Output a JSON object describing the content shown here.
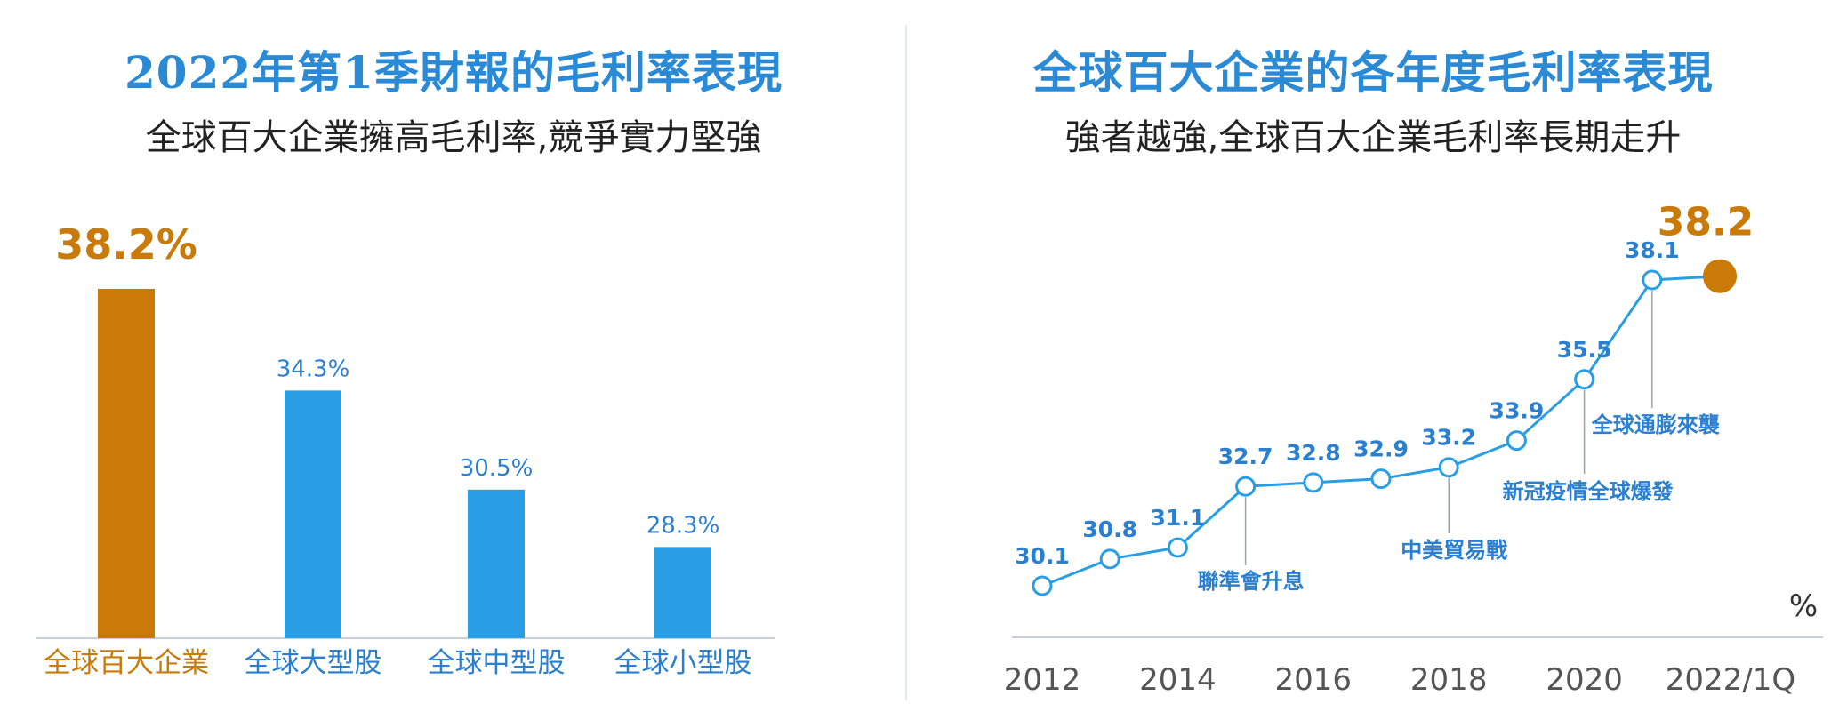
{
  "chart_data": [
    {
      "type": "bar",
      "title": "2022年第1季財報的毛利率表現",
      "subtitle": "全球百大企業擁高毛利率,競爭實力堅強",
      "categories": [
        "全球百大企業",
        "全球大型股",
        "全球中型股",
        "全球小型股"
      ],
      "values": [
        38.2,
        34.3,
        30.5,
        28.3
      ],
      "value_labels": [
        "38.2%",
        "34.3%",
        "30.5%",
        "28.3%"
      ],
      "ylim": [
        24.8,
        38.2
      ],
      "grid": false,
      "colors": [
        "#c97a07",
        "#2a9ee4",
        "#2a9ee4",
        "#2a9ee4"
      ]
    },
    {
      "type": "line",
      "title": "全球百大企業的各年度毛利率表現",
      "subtitle": "強者越強,全球百大企業毛利率長期走升",
      "unit_label": "%",
      "x": [
        "2012",
        "2013",
        "2014",
        "2015",
        "2016",
        "2017",
        "2018",
        "2019",
        "2020",
        "2021",
        "2022/1Q"
      ],
      "x_tick_labels": [
        "2012",
        "2014",
        "2016",
        "2018",
        "2020",
        "2022/1Q"
      ],
      "x_tick_indices": [
        0,
        2,
        4,
        6,
        8,
        10
      ],
      "values": [
        30.1,
        30.8,
        31.1,
        32.7,
        32.8,
        32.9,
        33.2,
        33.9,
        35.5,
        38.1,
        38.2
      ],
      "point_labels": [
        "30.1",
        "30.8",
        "31.1",
        "32.7",
        "32.8",
        "32.9",
        "33.2",
        "33.9",
        "35.5",
        "38.1",
        "38.2"
      ],
      "highlight_index": 10,
      "ylim": [
        28.0,
        40.5
      ],
      "grid": false,
      "annotations": [
        {
          "index": 3,
          "text": "聯準會升息"
        },
        {
          "index": 6,
          "text": "中美貿易戰"
        },
        {
          "index": 8,
          "text": "新冠疫情全球爆發"
        },
        {
          "index": 9,
          "text": "全球通膨來襲"
        }
      ],
      "colors": {
        "line": "#2a9ee4",
        "highlight": "#c97a07",
        "axis_text": "#555555",
        "annotation": "#2a7fd0"
      }
    }
  ]
}
